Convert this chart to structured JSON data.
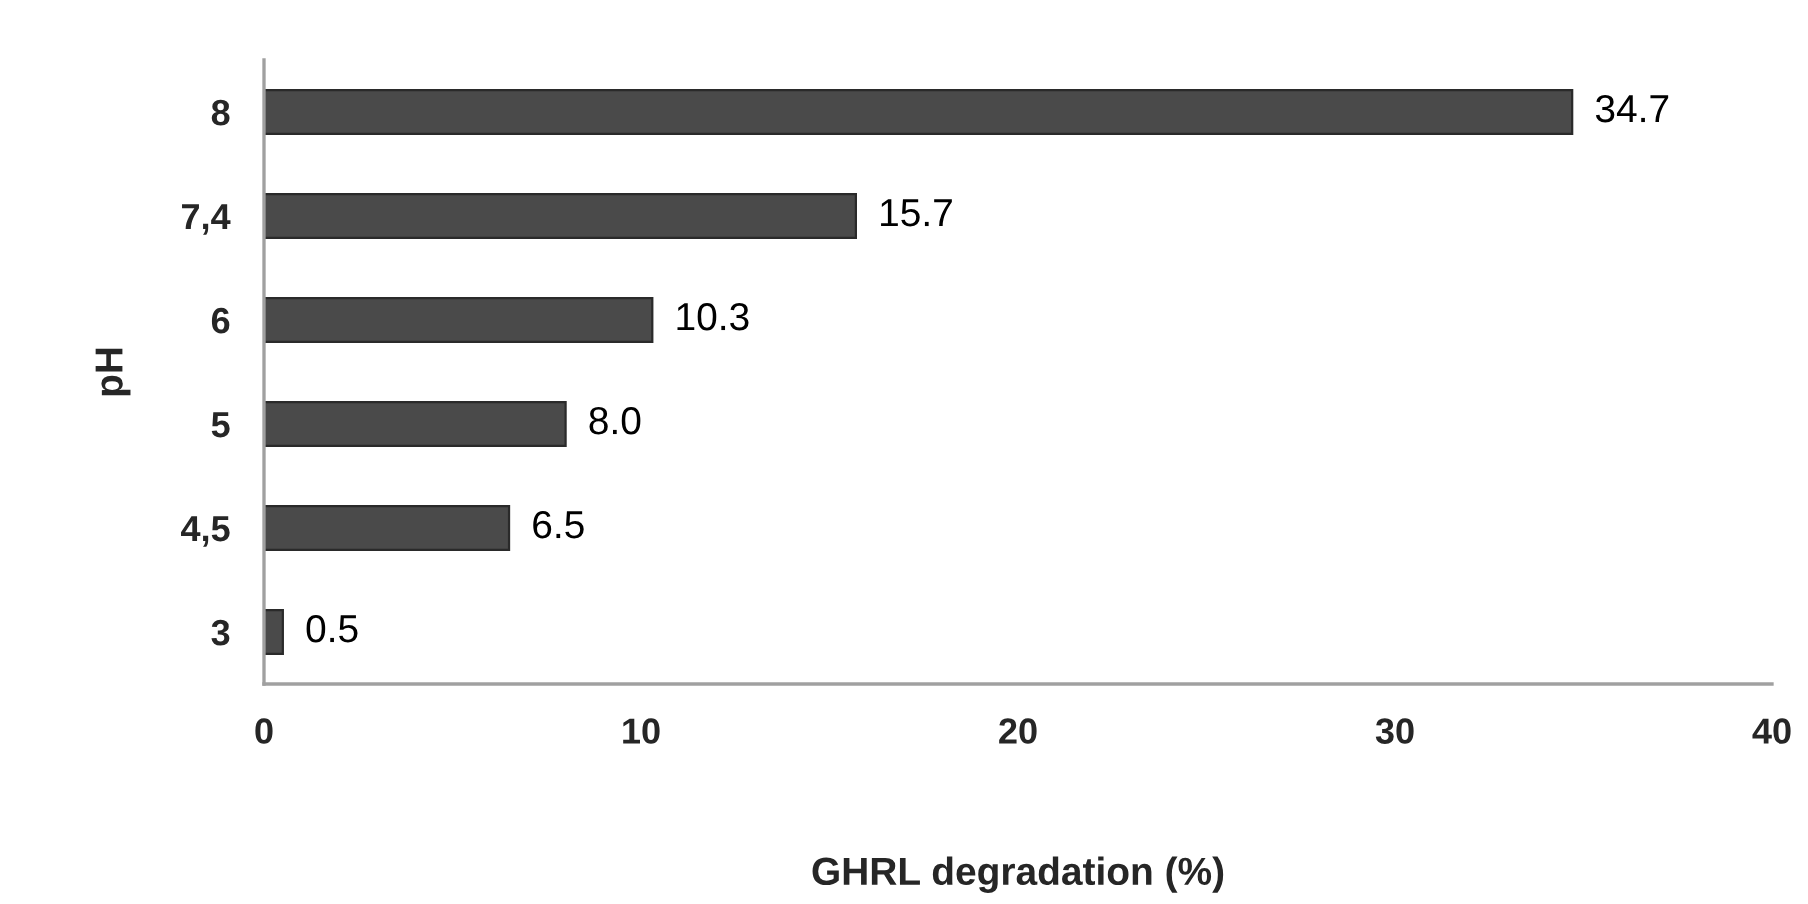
{
  "chart_data": {
    "type": "bar",
    "orientation": "horizontal",
    "categories": [
      "8",
      "7,4",
      "6",
      "5",
      "4,5",
      "3"
    ],
    "values": [
      34.7,
      15.7,
      10.3,
      8.0,
      6.5,
      0.5
    ],
    "value_labels": [
      "34.7",
      "15.7",
      "10.3",
      "8.0",
      "6.5",
      "0.5"
    ],
    "color": "#4a4a4a",
    "xlim": [
      0,
      40
    ],
    "xticks": [
      0,
      10,
      20,
      30,
      40
    ],
    "xlabel": "GHRL degradation (%)",
    "ylabel": "pH",
    "grid": false,
    "legend": false
  }
}
